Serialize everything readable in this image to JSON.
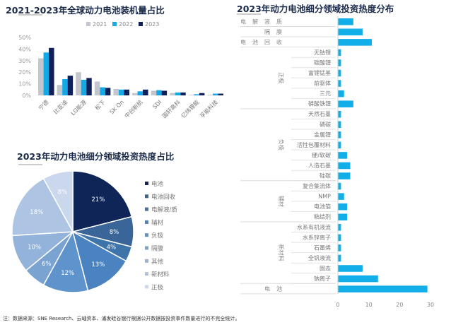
{
  "note": "注：数据来源：SNE Research、云岫资本、浦发硅谷银行根据公开数据按投资事件数量进行的不完全统计。",
  "chart_data": [
    {
      "type": "bar",
      "title": "2021-2023年全球动力电池装机量占比",
      "xlabel": "",
      "ylabel": "",
      "ylim": [
        0,
        50
      ],
      "yticks": [
        "0%",
        "10%",
        "20%",
        "30%",
        "40%",
        "50%"
      ],
      "legend_position": "top",
      "categories": [
        "宁德",
        "比亚迪",
        "LG能源",
        "松下",
        "SK On",
        "中创新航",
        "SDI",
        "国轩高科",
        "亿纬锂能",
        "孚能科技"
      ],
      "series": [
        {
          "name": "2021",
          "color": "#c3c6cc",
          "values": [
            32,
            9,
            20,
            12,
            5.5,
            2,
            4,
            2,
            0.5,
            0.5
          ]
        },
        {
          "name": "2022",
          "color": "#13a9e6",
          "values": [
            37,
            14,
            13.5,
            7,
            5,
            3.5,
            4.5,
            2.5,
            1,
            1.5
          ]
        },
        {
          "name": "2023",
          "color": "#10205a",
          "values": [
            41,
            17,
            15,
            6.5,
            5,
            5,
            4,
            2.5,
            2,
            1.5
          ]
        }
      ]
    },
    {
      "type": "pie",
      "title": "2023年动力电池细分领域投资热度占比",
      "legend_position": "right",
      "labels": [
        "电池",
        "电池回收",
        "电解液/质",
        "辅材",
        "负极",
        "隔膜",
        "其他",
        "新材料",
        "正极"
      ],
      "values": [
        21,
        8,
        4,
        13,
        12,
        6,
        10,
        18,
        8
      ],
      "colors": [
        "#0f2557",
        "#3a6598",
        "#3f74ab",
        "#4a83bf",
        "#5f93cb",
        "#7aa3d1",
        "#93b3da",
        "#aec4e3",
        "#cad7ec"
      ]
    },
    {
      "type": "bar",
      "orientation": "horizontal",
      "title": "2023年动力电池细分领域投资热度分布",
      "xlim": [
        0,
        30
      ],
      "xticks": [
        "0",
        "10",
        "20",
        "30"
      ],
      "color": "#11aeea",
      "rows": [
        {
          "group": "电解液/质",
          "label": "",
          "value": 5
        },
        {
          "group": "隔膜",
          "label": "",
          "value": 8
        },
        {
          "group": "电池回收",
          "label": "",
          "value": 11
        },
        {
          "group": "正极",
          "label": "无钴锂",
          "value": 1
        },
        {
          "group": "正极",
          "label": "碳酸锂",
          "value": 1
        },
        {
          "group": "正极",
          "label": "富锂锰基",
          "value": 1
        },
        {
          "group": "正极",
          "label": "前驱体",
          "value": 1
        },
        {
          "group": "正极",
          "label": "三元",
          "value": 2
        },
        {
          "group": "正极",
          "label": "磷酸铁锂",
          "value": 5
        },
        {
          "group": "负极",
          "label": "天然石墨",
          "value": 1
        },
        {
          "group": "负极",
          "label": "磷碳",
          "value": 1
        },
        {
          "group": "负极",
          "label": "金属锂",
          "value": 1
        },
        {
          "group": "负极",
          "label": "活性包覆材料",
          "value": 1
        },
        {
          "group": "负极",
          "label": "硬/软碳",
          "value": 3
        },
        {
          "group": "负极",
          "label": "人造石墨",
          "value": 4
        },
        {
          "group": "负极",
          "label": "硅碳",
          "value": 4
        },
        {
          "group": "辅材",
          "label": "复合集流体",
          "value": 1
        },
        {
          "group": "辅材",
          "label": "NMP",
          "value": 2
        },
        {
          "group": "辅材",
          "label": "电池箔",
          "value": 3
        },
        {
          "group": "辅材",
          "label": "粘结剂",
          "value": 3
        },
        {
          "group": "新材料",
          "label": "水系有机液流",
          "value": 1
        },
        {
          "group": "新材料",
          "label": "水系锌离子",
          "value": 1
        },
        {
          "group": "新材料",
          "label": "石墨烯",
          "value": 1
        },
        {
          "group": "新材料",
          "label": "全钒液流",
          "value": 1
        },
        {
          "group": "新材料",
          "label": "固态",
          "value": 8
        },
        {
          "group": "新材料",
          "label": "钠离子",
          "value": 13
        },
        {
          "group": "电池",
          "label": "",
          "value": 29
        }
      ]
    }
  ]
}
